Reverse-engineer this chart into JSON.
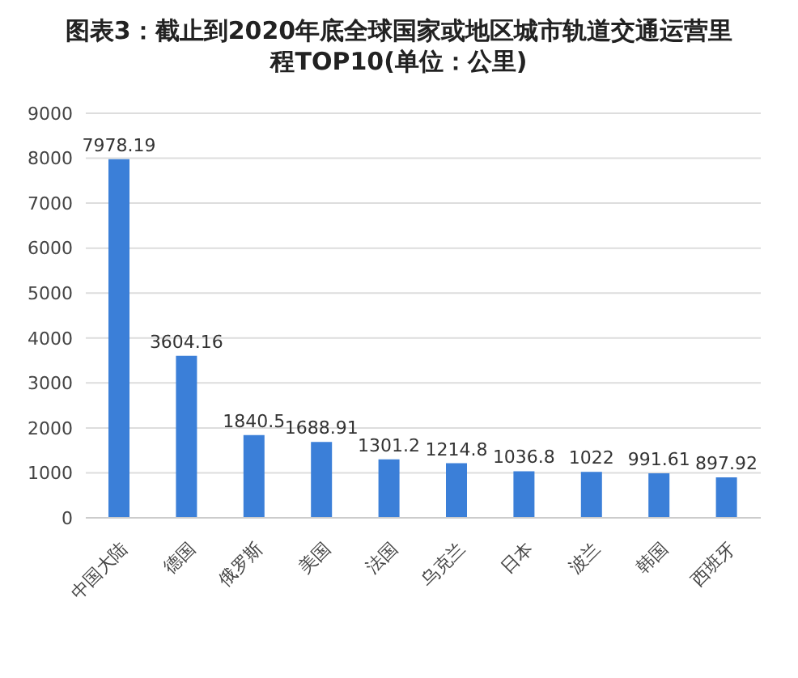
{
  "chart_data": {
    "type": "bar",
    "title": "图表3：截止到2020年底全球国家或地区城市轨道交通运营里程TOP10(单位：公里)",
    "categories": [
      "中国大陆",
      "德国",
      "俄罗斯",
      "美国",
      "法国",
      "乌克兰",
      "日本",
      "波兰",
      "韩国",
      "西班牙"
    ],
    "values": [
      7978.19,
      3604.16,
      1840.5,
      1688.91,
      1301.2,
      1214.8,
      1036.8,
      1022,
      991.61,
      897.92
    ],
    "color": "#3b7fd8",
    "ylim": [
      0,
      9000
    ],
    "yticks": [
      0,
      1000,
      2000,
      3000,
      4000,
      5000,
      6000,
      7000,
      8000,
      9000
    ],
    "grid": "y",
    "data_labels": true
  }
}
